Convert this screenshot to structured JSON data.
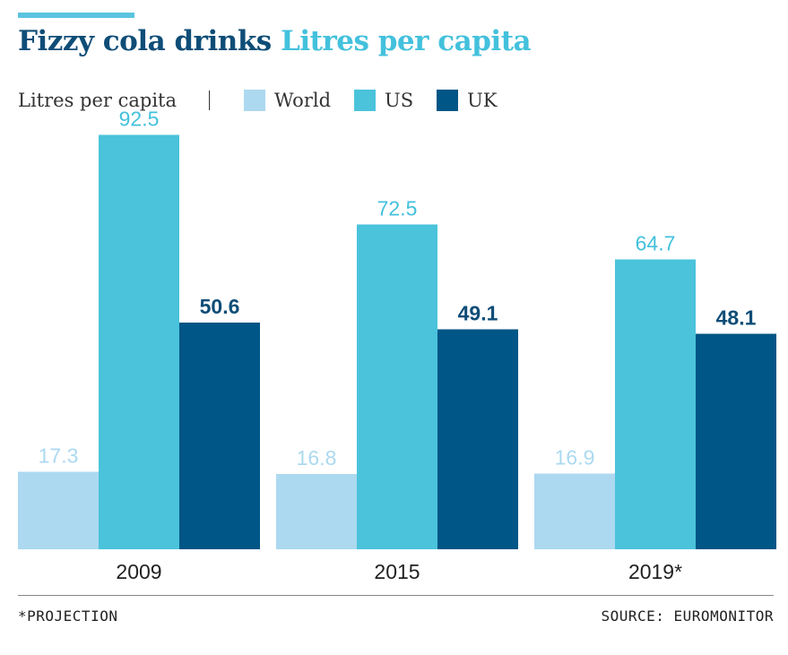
{
  "header": {
    "title_main": "Fizzy cola drinks",
    "title_sub": "Litres per capita"
  },
  "legend": {
    "unit_label": "Litres per capita"
  },
  "footer": {
    "note": "*PROJECTION",
    "source": "SOURCE: EUROMONITOR"
  },
  "colors": {
    "accent_bar": "#5bc4de",
    "World": "#acd9f0",
    "US": "#4ac3db",
    "UK": "#005686",
    "World_label": "#acd9f0",
    "US_label": "#43c1dc",
    "UK_label": "#0e4d77"
  },
  "chart_data": {
    "type": "bar",
    "title": "Fizzy cola drinks Litres per capita",
    "ylabel": "Litres per capita",
    "categories": [
      "2009",
      "2015",
      "2019*"
    ],
    "series": [
      {
        "name": "World",
        "values": [
          17.3,
          16.8,
          16.9
        ]
      },
      {
        "name": "US",
        "values": [
          92.5,
          72.5,
          64.7
        ]
      },
      {
        "name": "UK",
        "values": [
          50.6,
          49.1,
          48.1
        ]
      }
    ],
    "ylim": [
      0,
      100
    ],
    "grid": false,
    "legend_position": "top-left",
    "data_labels": true
  }
}
